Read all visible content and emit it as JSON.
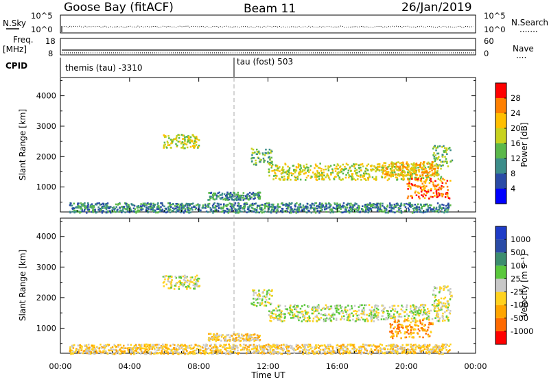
{
  "header": {
    "station": "Goose Bay (fitACF)",
    "beam": "Beam 11",
    "date": "26/Jan/2019"
  },
  "strips": {
    "nsky": {
      "label": "N.Sky",
      "ticks": [
        "10^5",
        "10^0"
      ]
    },
    "nsearch": {
      "label": "N.Search",
      "ticks": [
        "10^5",
        "10^0"
      ],
      "legend": "·······"
    },
    "freq": {
      "label_line1": "Freq.",
      "label_line2": "[MHz]",
      "ticks": [
        "18",
        "8"
      ]
    },
    "nave": {
      "label": "Nave",
      "ticks": [
        "60",
        "0"
      ],
      "legend": "····"
    },
    "cpid": {
      "label": "CPID",
      "segments": [
        {
          "start_h": 0,
          "text": "themis (tau) -3310"
        },
        {
          "start_h": 10,
          "text": "tau (fost) 503"
        }
      ]
    }
  },
  "colors": {
    "power": [
      "#0000ff",
      "#2a4ba6",
      "#3c8d8a",
      "#5bb84a",
      "#c8d21e",
      "#ffbf00",
      "#ff8000",
      "#ff0000"
    ],
    "velocity": [
      "#ff0000",
      "#ff6a00",
      "#ffa500",
      "#ffd21e",
      "#c8c8c8",
      "#5ac83c",
      "#3c8d6e",
      "#2a4ba6",
      "#1e3cc8"
    ]
  },
  "chart_data": [
    {
      "type": "heatmap",
      "name": "power",
      "ylabel": "Slant Range [km]",
      "ylim": [
        180,
        4600
      ],
      "yticks": [
        1000,
        2000,
        3000,
        4000
      ],
      "xlim": [
        0,
        24
      ],
      "colorbar": {
        "label": "Power [dB]",
        "range": [
          0,
          32
        ],
        "ticks": [
          "4",
          "8",
          "12",
          "16",
          "20",
          "24",
          "28"
        ]
      },
      "features": [
        {
          "t": [
            5.9,
            8.0
          ],
          "r": [
            2300,
            2750
          ],
          "level": 4
        },
        {
          "t": [
            11.0,
            12.2
          ],
          "r": [
            1750,
            2300
          ],
          "level": 3
        },
        {
          "t": [
            12.0,
            22.0
          ],
          "r": [
            1250,
            1800
          ],
          "level": 4
        },
        {
          "t": [
            18.5,
            21.8
          ],
          "r": [
            1400,
            1850
          ],
          "level": 5
        },
        {
          "t": [
            20.0,
            22.5
          ],
          "r": [
            650,
            1300
          ],
          "level": 6
        },
        {
          "t": [
            21.5,
            22.6
          ],
          "r": [
            1700,
            2400
          ],
          "level": 3
        },
        {
          "t": [
            8.5,
            11.5
          ],
          "r": [
            600,
            850
          ],
          "level": 2
        },
        {
          "t": [
            0.5,
            22.5
          ],
          "r": [
            180,
            500
          ],
          "level": 2
        }
      ]
    },
    {
      "type": "heatmap",
      "name": "velocity",
      "ylabel": "Slant Range [km]",
      "ylim": [
        180,
        4600
      ],
      "yticks": [
        1000,
        2000,
        3000,
        4000
      ],
      "xlim": [
        0,
        24
      ],
      "xlabel": "Time UT",
      "xticks": [
        "00:00",
        "04:00",
        "08:00",
        "12:00",
        "16:00",
        "20:00",
        "00:00"
      ],
      "colorbar": {
        "label": "Velocity [m s⁻¹]",
        "ticks": [
          "-1000",
          "-500",
          "-100",
          "-25",
          "25",
          "100",
          "500",
          "1000"
        ]
      },
      "features": [
        {
          "t": [
            5.9,
            8.0
          ],
          "r": [
            2300,
            2750
          ],
          "level": 4
        },
        {
          "t": [
            11.0,
            12.2
          ],
          "r": [
            1750,
            2300
          ],
          "level": 4
        },
        {
          "t": [
            12.0,
            22.5
          ],
          "r": [
            1250,
            1800
          ],
          "level": 4
        },
        {
          "t": [
            19.0,
            21.5
          ],
          "r": [
            700,
            1300
          ],
          "level": 2
        },
        {
          "t": [
            21.5,
            22.6
          ],
          "r": [
            1700,
            2400
          ],
          "level": 4
        },
        {
          "t": [
            8.5,
            11.5
          ],
          "r": [
            600,
            850
          ],
          "level": 3
        },
        {
          "t": [
            0.5,
            22.5
          ],
          "r": [
            180,
            500
          ],
          "level": 3
        }
      ]
    }
  ]
}
